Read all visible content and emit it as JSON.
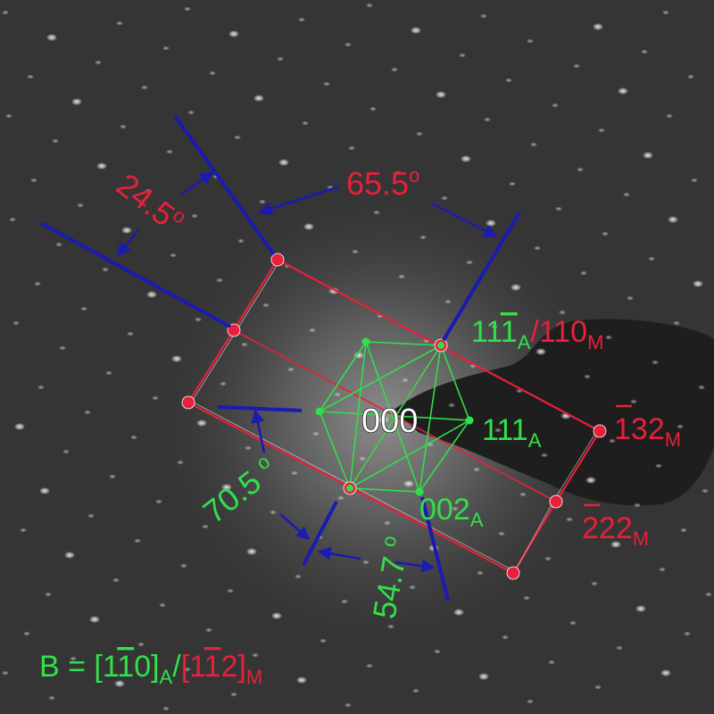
{
  "colors": {
    "background": "#3a3a3a",
    "austenite": "#2ee04a",
    "martensite": "#e8203a",
    "angle_lines": "#1a1ab4",
    "origin_label": "#ffffff"
  },
  "labels": {
    "origin": "000",
    "angle_245": "24.5",
    "angle_655": "65.5",
    "angle_705": "70.5 ",
    "angle_547": "54.7 ",
    "degree_symbol": "o",
    "spot_111bar_a": "11",
    "spot_111bar_a_bar_digit": "1",
    "sub_a": "A",
    "slash": "/",
    "spot_110_m": "110",
    "sub_m": "M",
    "spot_111_a": "111",
    "spot_bar132_m": "132",
    "spot_bar222_m": "222",
    "spot_002_a": "002",
    "beam_prefix": "B = [1",
    "beam_a_bar_digit": "1",
    "beam_a_end": "0]",
    "beam_m_start": "[1",
    "beam_m_bar_digit": "1",
    "beam_m_end": "2]"
  }
}
